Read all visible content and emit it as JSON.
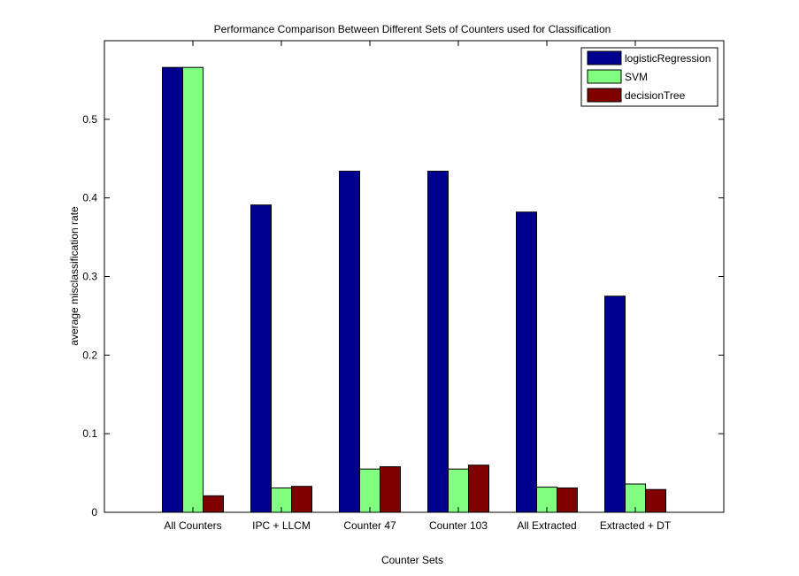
{
  "chart_data": {
    "type": "bar",
    "title": "Performance Comparison Between Different Sets of Counters used for Classification",
    "xlabel": "Counter Sets",
    "ylabel": "average misclassification rate",
    "categories": [
      "All Counters",
      "IPC + LLCM",
      "Counter 47",
      "Counter 103",
      "All Extracted",
      "Extracted + DT"
    ],
    "ylim": [
      0,
      0.6
    ],
    "yticks": [
      "0",
      "0.1",
      "0.2",
      "0.3",
      "0.4",
      "0.5"
    ],
    "grid": false,
    "legend_position": "top-right",
    "series": [
      {
        "name": "logisticRegression",
        "color": "#00008f",
        "values": [
          0.566,
          0.391,
          0.434,
          0.434,
          0.382,
          0.275
        ]
      },
      {
        "name": "SVM",
        "color": "#80ff80",
        "values": [
          0.566,
          0.031,
          0.055,
          0.055,
          0.032,
          0.036
        ]
      },
      {
        "name": "decisionTree",
        "color": "#800000",
        "values": [
          0.021,
          0.033,
          0.058,
          0.06,
          0.031,
          0.029
        ]
      }
    ]
  }
}
